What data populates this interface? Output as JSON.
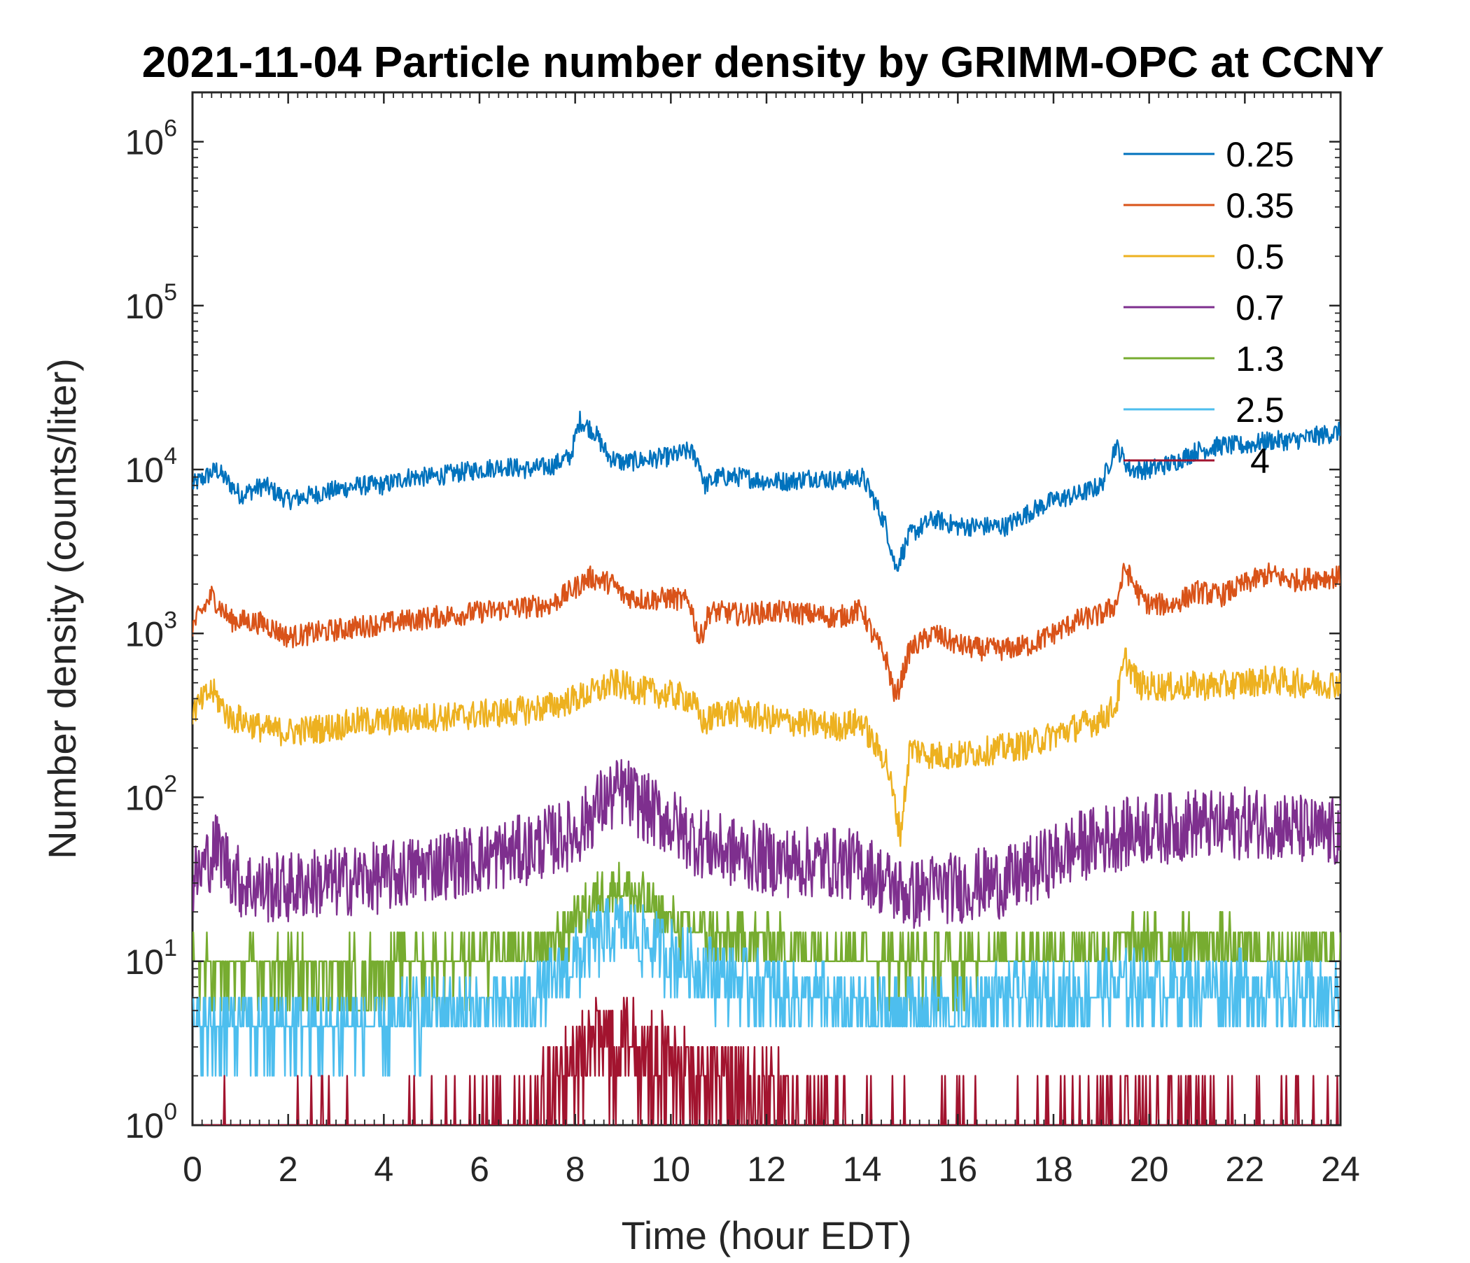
{
  "chart_data": {
    "type": "line",
    "title": "2021-11-04 Particle number density by GRIMM-OPC at CCNY",
    "xlabel": "Time (hour EDT)",
    "ylabel": "Number density (counts/liter)",
    "xlim": [
      0,
      24
    ],
    "ylim": [
      1,
      2000000
    ],
    "yscale": "log",
    "legend_position": "top-right",
    "x_ticks": [
      "0",
      "2",
      "4",
      "6",
      "8",
      "10",
      "12",
      "14",
      "16",
      "18",
      "20",
      "22",
      "24"
    ],
    "y_ticks": [
      {
        "base": "10",
        "exp": "0"
      },
      {
        "base": "10",
        "exp": "1"
      },
      {
        "base": "10",
        "exp": "2"
      },
      {
        "base": "10",
        "exp": "3"
      },
      {
        "base": "10",
        "exp": "4"
      },
      {
        "base": "10",
        "exp": "5"
      },
      {
        "base": "10",
        "exp": "6"
      }
    ],
    "series": [
      {
        "name": "0.25",
        "color": "#0072BD",
        "x": [
          0,
          0.5,
          1,
          1.5,
          2,
          2.5,
          3,
          3.5,
          4,
          4.5,
          5,
          5.5,
          6,
          6.5,
          7,
          7.5,
          7.9,
          8.1,
          8.4,
          8.7,
          9,
          9.5,
          10,
          10.4,
          10.6,
          10.7,
          11,
          11.5,
          12,
          12.5,
          13,
          13.5,
          14,
          14.2,
          14.5,
          14.7,
          15,
          15.5,
          16,
          16.5,
          17,
          17.5,
          18,
          18.5,
          19,
          19.3,
          19.6,
          20,
          20.5,
          21,
          21.5,
          22,
          22.5,
          23,
          23.5,
          24
        ],
        "values": [
          8000,
          10000,
          7000,
          8000,
          6500,
          7000,
          7500,
          8000,
          8000,
          9000,
          9000,
          9500,
          10000,
          10500,
          10000,
          10500,
          12000,
          20000,
          17000,
          12000,
          11000,
          11500,
          12000,
          13000,
          11000,
          8000,
          9000,
          9000,
          8500,
          8500,
          9000,
          8500,
          9000,
          7000,
          4500,
          2500,
          4000,
          5000,
          4500,
          4500,
          4500,
          5500,
          6500,
          7000,
          8000,
          14000,
          10000,
          10000,
          11000,
          13000,
          14000,
          14000,
          15000,
          15000,
          16000,
          17000
        ]
      },
      {
        "name": "0.35",
        "color": "#D95319",
        "x": [
          0,
          0.4,
          0.8,
          1,
          1.5,
          2,
          2.5,
          3,
          3.5,
          4,
          4.5,
          5,
          5.5,
          6,
          6.5,
          7,
          7.5,
          8,
          8.3,
          8.8,
          9,
          9.5,
          10,
          10.4,
          10.6,
          10.8,
          11,
          11.5,
          12,
          12.5,
          13,
          13.5,
          14,
          14.2,
          14.5,
          14.7,
          15,
          15.5,
          16,
          16.5,
          17,
          17.5,
          18,
          18.5,
          19,
          19.3,
          19.5,
          19.8,
          20,
          20.5,
          21,
          21.5,
          22,
          22.5,
          23,
          23.5,
          24
        ],
        "values": [
          1100,
          1700,
          1200,
          1200,
          1150,
          950,
          1000,
          1050,
          1100,
          1150,
          1200,
          1250,
          1300,
          1350,
          1400,
          1450,
          1500,
          1900,
          2200,
          2000,
          1700,
          1600,
          1650,
          1550,
          900,
          1350,
          1350,
          1300,
          1350,
          1350,
          1300,
          1250,
          1400,
          1000,
          700,
          400,
          800,
          1000,
          850,
          800,
          800,
          850,
          1000,
          1200,
          1300,
          1500,
          2500,
          1700,
          1500,
          1500,
          1800,
          1700,
          2000,
          2300,
          2100,
          2200,
          2200
        ]
      },
      {
        "name": "0.5",
        "color": "#EDB120",
        "x": [
          0,
          0.4,
          0.8,
          1,
          1.5,
          2,
          2.5,
          3,
          3.5,
          4,
          4.5,
          5,
          5.5,
          6,
          6.5,
          7,
          7.5,
          8,
          8.5,
          8.8,
          9,
          9.5,
          10,
          10.4,
          10.7,
          11,
          11.5,
          12,
          12.5,
          13,
          13.5,
          14,
          14.2,
          14.5,
          14.8,
          15,
          15.5,
          16,
          16.5,
          17,
          17.5,
          18,
          18.5,
          19,
          19.3,
          19.5,
          19.8,
          20,
          20.5,
          21,
          21.5,
          22,
          22.5,
          23,
          23.5,
          24
        ],
        "values": [
          330,
          450,
          300,
          300,
          260,
          250,
          260,
          270,
          290,
          290,
          300,
          310,
          310,
          320,
          330,
          340,
          360,
          400,
          450,
          500,
          480,
          440,
          420,
          400,
          280,
          330,
          330,
          300,
          290,
          280,
          270,
          290,
          220,
          170,
          60,
          200,
          180,
          180,
          190,
          200,
          210,
          240,
          270,
          300,
          360,
          700,
          480,
          480,
          470,
          480,
          480,
          500,
          520,
          500,
          490,
          500
        ]
      },
      {
        "name": "0.7",
        "color": "#7E2F8E",
        "x": [
          0,
          0.5,
          1,
          1.5,
          2,
          2.5,
          3,
          3.5,
          4,
          4.5,
          5,
          5.5,
          6,
          6.5,
          7,
          7.5,
          8,
          8.5,
          9,
          9.5,
          10,
          10.5,
          11,
          11.5,
          12,
          12.5,
          13,
          13.5,
          14,
          14.5,
          15,
          15.5,
          16,
          16.5,
          17,
          17.5,
          18,
          18.5,
          19,
          19.5,
          20,
          20.5,
          21,
          21.5,
          22,
          22.5,
          23,
          23.5,
          24
        ],
        "values": [
          30,
          50,
          30,
          28,
          28,
          30,
          30,
          32,
          32,
          35,
          38,
          40,
          42,
          45,
          48,
          55,
          60,
          90,
          110,
          85,
          70,
          55,
          48,
          45,
          42,
          40,
          40,
          40,
          38,
          30,
          25,
          28,
          28,
          30,
          30,
          35,
          42,
          50,
          55,
          60,
          65,
          65,
          70,
          65,
          70,
          70,
          65,
          60,
          60
        ]
      },
      {
        "name": "1.3",
        "color": "#77AC30",
        "x": [
          0,
          1,
          2,
          3,
          4,
          5,
          6,
          7,
          7.5,
          8,
          8.5,
          9,
          9.5,
          10,
          11,
          12,
          13,
          14,
          15,
          16,
          17,
          18,
          19,
          20,
          21,
          22,
          23,
          24
        ],
        "values": [
          9,
          9,
          9,
          9,
          9,
          10,
          10,
          11,
          12,
          18,
          25,
          28,
          22,
          17,
          14,
          13,
          12,
          11,
          10,
          10,
          11,
          11,
          12,
          13,
          13,
          12,
          12,
          12
        ]
      },
      {
        "name": "2.5",
        "color": "#4DBEEE",
        "x": [
          0,
          1,
          2,
          3,
          4,
          5,
          6,
          7,
          7.5,
          8,
          8.5,
          9,
          9.5,
          10,
          11,
          12,
          13,
          14,
          15,
          16,
          17,
          18,
          19,
          20,
          21,
          22,
          23,
          24
        ],
        "values": [
          4,
          4,
          4,
          4,
          4,
          5,
          5,
          6,
          7,
          10,
          14,
          16,
          13,
          11,
          8,
          7,
          6,
          5,
          5,
          5,
          6,
          6,
          7,
          7,
          7,
          7,
          6,
          6
        ]
      },
      {
        "name": "4",
        "color": "#A2142F",
        "x": [
          0,
          2,
          3,
          4,
          5,
          6,
          7,
          8,
          8.5,
          9,
          9.5,
          10,
          10.5,
          11,
          11.5,
          12,
          12.5,
          13,
          13.5,
          14,
          15,
          16,
          17,
          18,
          19,
          20,
          21,
          22,
          23,
          24
        ],
        "values": [
          1,
          1,
          1.2,
          1,
          1,
          1.2,
          1.3,
          2.5,
          3.5,
          4,
          3,
          2.5,
          2,
          2,
          1.8,
          1.8,
          1.5,
          1.5,
          1.3,
          1.2,
          1.1,
          1.1,
          1.1,
          1.1,
          1.3,
          1.4,
          1.4,
          1.3,
          1.2,
          1.2
        ]
      }
    ]
  }
}
